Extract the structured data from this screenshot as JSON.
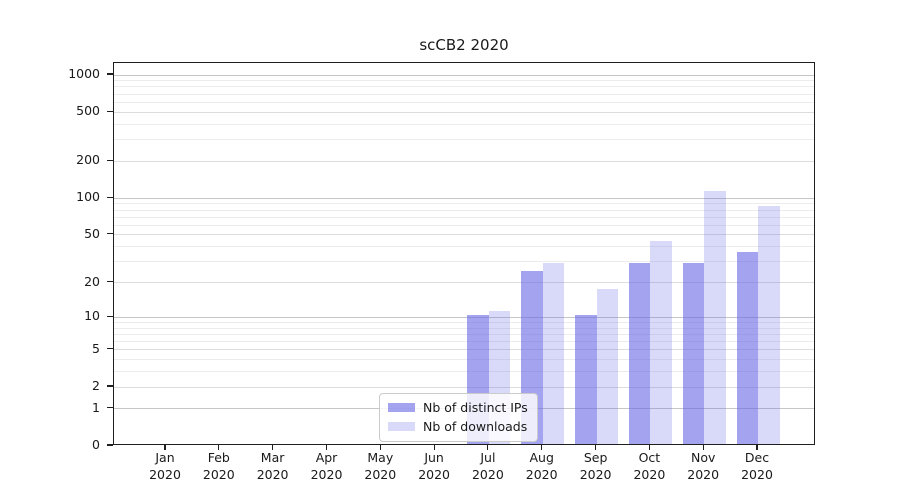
{
  "chart_data": {
    "type": "bar",
    "title": "scCB2 2020",
    "months": [
      "Jan",
      "Feb",
      "Mar",
      "Apr",
      "May",
      "Jun",
      "Jul",
      "Aug",
      "Sep",
      "Oct",
      "Nov",
      "Dec"
    ],
    "year": "2020",
    "series": [
      {
        "name": "Nb of distinct IPs",
        "color": "rgba(102,102,230,0.6)",
        "values": [
          0,
          0,
          0,
          0,
          0,
          0,
          10,
          24,
          10,
          28,
          28,
          35
        ]
      },
      {
        "name": "Nb of downloads",
        "color": "rgba(102,102,230,0.25)",
        "values": [
          0,
          0,
          0,
          0,
          0,
          0,
          11,
          28,
          17,
          43,
          110,
          83
        ]
      }
    ],
    "yscale": "log1p",
    "ylim": [
      0,
      1250
    ],
    "yticks": [
      0,
      1,
      2,
      5,
      10,
      20,
      50,
      100,
      200,
      500,
      1000
    ],
    "grid": {
      "major": [
        1,
        10,
        100,
        1000
      ],
      "medium": [
        2,
        5,
        20,
        50,
        200,
        500
      ],
      "minor": [
        3,
        4,
        6,
        7,
        8,
        9,
        30,
        40,
        60,
        70,
        80,
        90,
        300,
        400,
        600,
        700,
        800,
        900
      ]
    },
    "grid_on": true,
    "legend_position": "lower-center"
  }
}
